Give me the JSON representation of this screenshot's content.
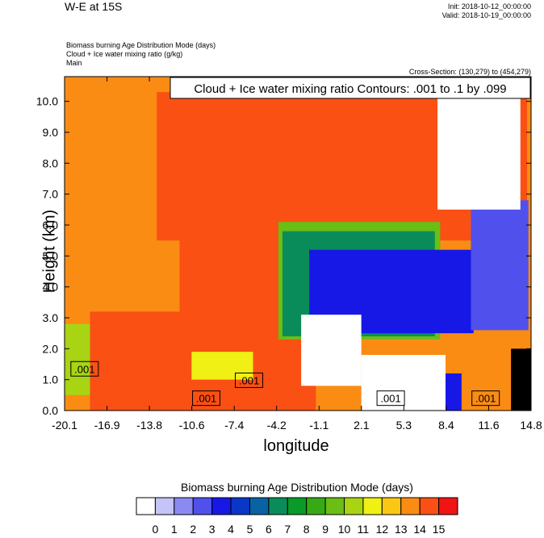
{
  "header": {
    "title": "W-E at 15S",
    "init": "Init: 2018-10-12_00:00:00",
    "valid": "Valid: 2018-10-19_00:00:00",
    "field_line_1": "Biomass burning Age Distribution Mode   (days)",
    "field_line_2": "Cloud + Ice water mixing ratio   (g/kg)",
    "field_line_3": "Main",
    "cross_section": "Cross-Section: (130,279) to (454,279)"
  },
  "chart_data": {
    "type": "heatmap",
    "xlabel": "longitude",
    "ylabel": "Height (km)",
    "x_ticks": [
      "-20.1",
      "-16.9",
      "-13.8",
      "-10.6",
      "-7.4",
      "-4.2",
      "-1.1",
      "2.1",
      "5.3",
      "8.4",
      "11.6",
      "14.8"
    ],
    "xlim": [
      -20.1,
      14.8
    ],
    "y_ticks": [
      "0.0",
      "1.0",
      "2.0",
      "3.0",
      "4.0",
      "5.0",
      "6.0",
      "7.0",
      "8.0",
      "9.0",
      "10.0"
    ],
    "ylim": [
      0,
      10.8
    ],
    "contour_title": "Cloud + Ice water mixing ratio Contours: .001 to .1 by .099",
    "contour_labels": [
      {
        "text": ".001",
        "x": -18.6,
        "y": 1.35
      },
      {
        "text": ".001",
        "x": -6.3,
        "y": 0.98
      },
      {
        "text": ".001",
        "x": -9.5,
        "y": 0.4
      },
      {
        "text": ".001",
        "x": 4.3,
        "y": 0.4
      },
      {
        "text": ".001",
        "x": 11.4,
        "y": 0.4
      }
    ],
    "colorbar": {
      "title": "Biomass burning Age Distribution Mode  (days)",
      "labels": [
        "0",
        "1",
        "2",
        "3",
        "4",
        "5",
        "6",
        "7",
        "8",
        "9",
        "10",
        "11",
        "12",
        "13",
        "14",
        "15"
      ],
      "colors": [
        "#ffffff",
        "#c4c4f8",
        "#8a8af2",
        "#5050ec",
        "#1818e6",
        "#0a37c8",
        "#0a62a5",
        "#0a8c5a",
        "#0a9a28",
        "#36aa14",
        "#6abe14",
        "#a8d414",
        "#f0f014",
        "#fac814",
        "#fa8c14",
        "#fa5014",
        "#f01414"
      ]
    },
    "regions": [
      {
        "name": "background-age-14",
        "level": 14,
        "x0": -20.1,
        "x1": 14.8,
        "y0": 0,
        "y1": 10.8
      },
      {
        "name": "aged-air-age-15-upper",
        "level": 15,
        "x0": -13.2,
        "x1": 14.5,
        "y0": 5.5,
        "y1": 10.3
      },
      {
        "name": "aged-air-age-15-lower",
        "level": 15,
        "x0": -18.2,
        "x1": -1.3,
        "y0": 0,
        "y1": 3.2
      },
      {
        "name": "aged-air-age-15-mid",
        "level": 15,
        "x0": -11.5,
        "x1": 8.0,
        "y0": 2.8,
        "y1": 6.6
      },
      {
        "name": "coastal-age-11",
        "level": 11,
        "x0": -20.1,
        "x1": -18.2,
        "y0": 0.5,
        "y1": 2.8
      },
      {
        "name": "low-age-12",
        "level": 12,
        "x0": -10.6,
        "x1": -6.0,
        "y0": 1.0,
        "y1": 1.9
      },
      {
        "name": "plume-age-10",
        "level": 10,
        "x0": -4.1,
        "x1": 8.0,
        "y0": 2.3,
        "y1": 6.1
      },
      {
        "name": "plume-age-7",
        "level": 7,
        "x0": -3.8,
        "x1": 7.6,
        "y0": 2.4,
        "y1": 5.8
      },
      {
        "name": "plume-age-4",
        "level": 4,
        "x0": -1.8,
        "x1": 10.5,
        "y0": 2.5,
        "y1": 5.2
      },
      {
        "name": "east-age-3",
        "level": 3,
        "x0": 10.3,
        "x1": 14.6,
        "y0": 2.6,
        "y1": 6.8
      },
      {
        "name": "fresh-air-west",
        "level": 0,
        "x0": -2.4,
        "x1": 2.1,
        "y0": 0.8,
        "y1": 3.1
      },
      {
        "name": "fresh-air-east-upper",
        "level": 0,
        "x0": 7.8,
        "x1": 14.0,
        "y0": 6.5,
        "y1": 10.8
      },
      {
        "name": "fresh-air-east-lower",
        "level": 0,
        "x0": 2.1,
        "x1": 8.4,
        "y0": 0,
        "y1": 1.8
      },
      {
        "name": "blue-column",
        "level": 4,
        "x0": 8.4,
        "x1": 9.6,
        "y0": 0,
        "y1": 1.2
      },
      {
        "name": "terrain",
        "level": -1,
        "x0": 13.3,
        "x1": 14.8,
        "y0": 0,
        "y1": 2.0
      }
    ]
  }
}
